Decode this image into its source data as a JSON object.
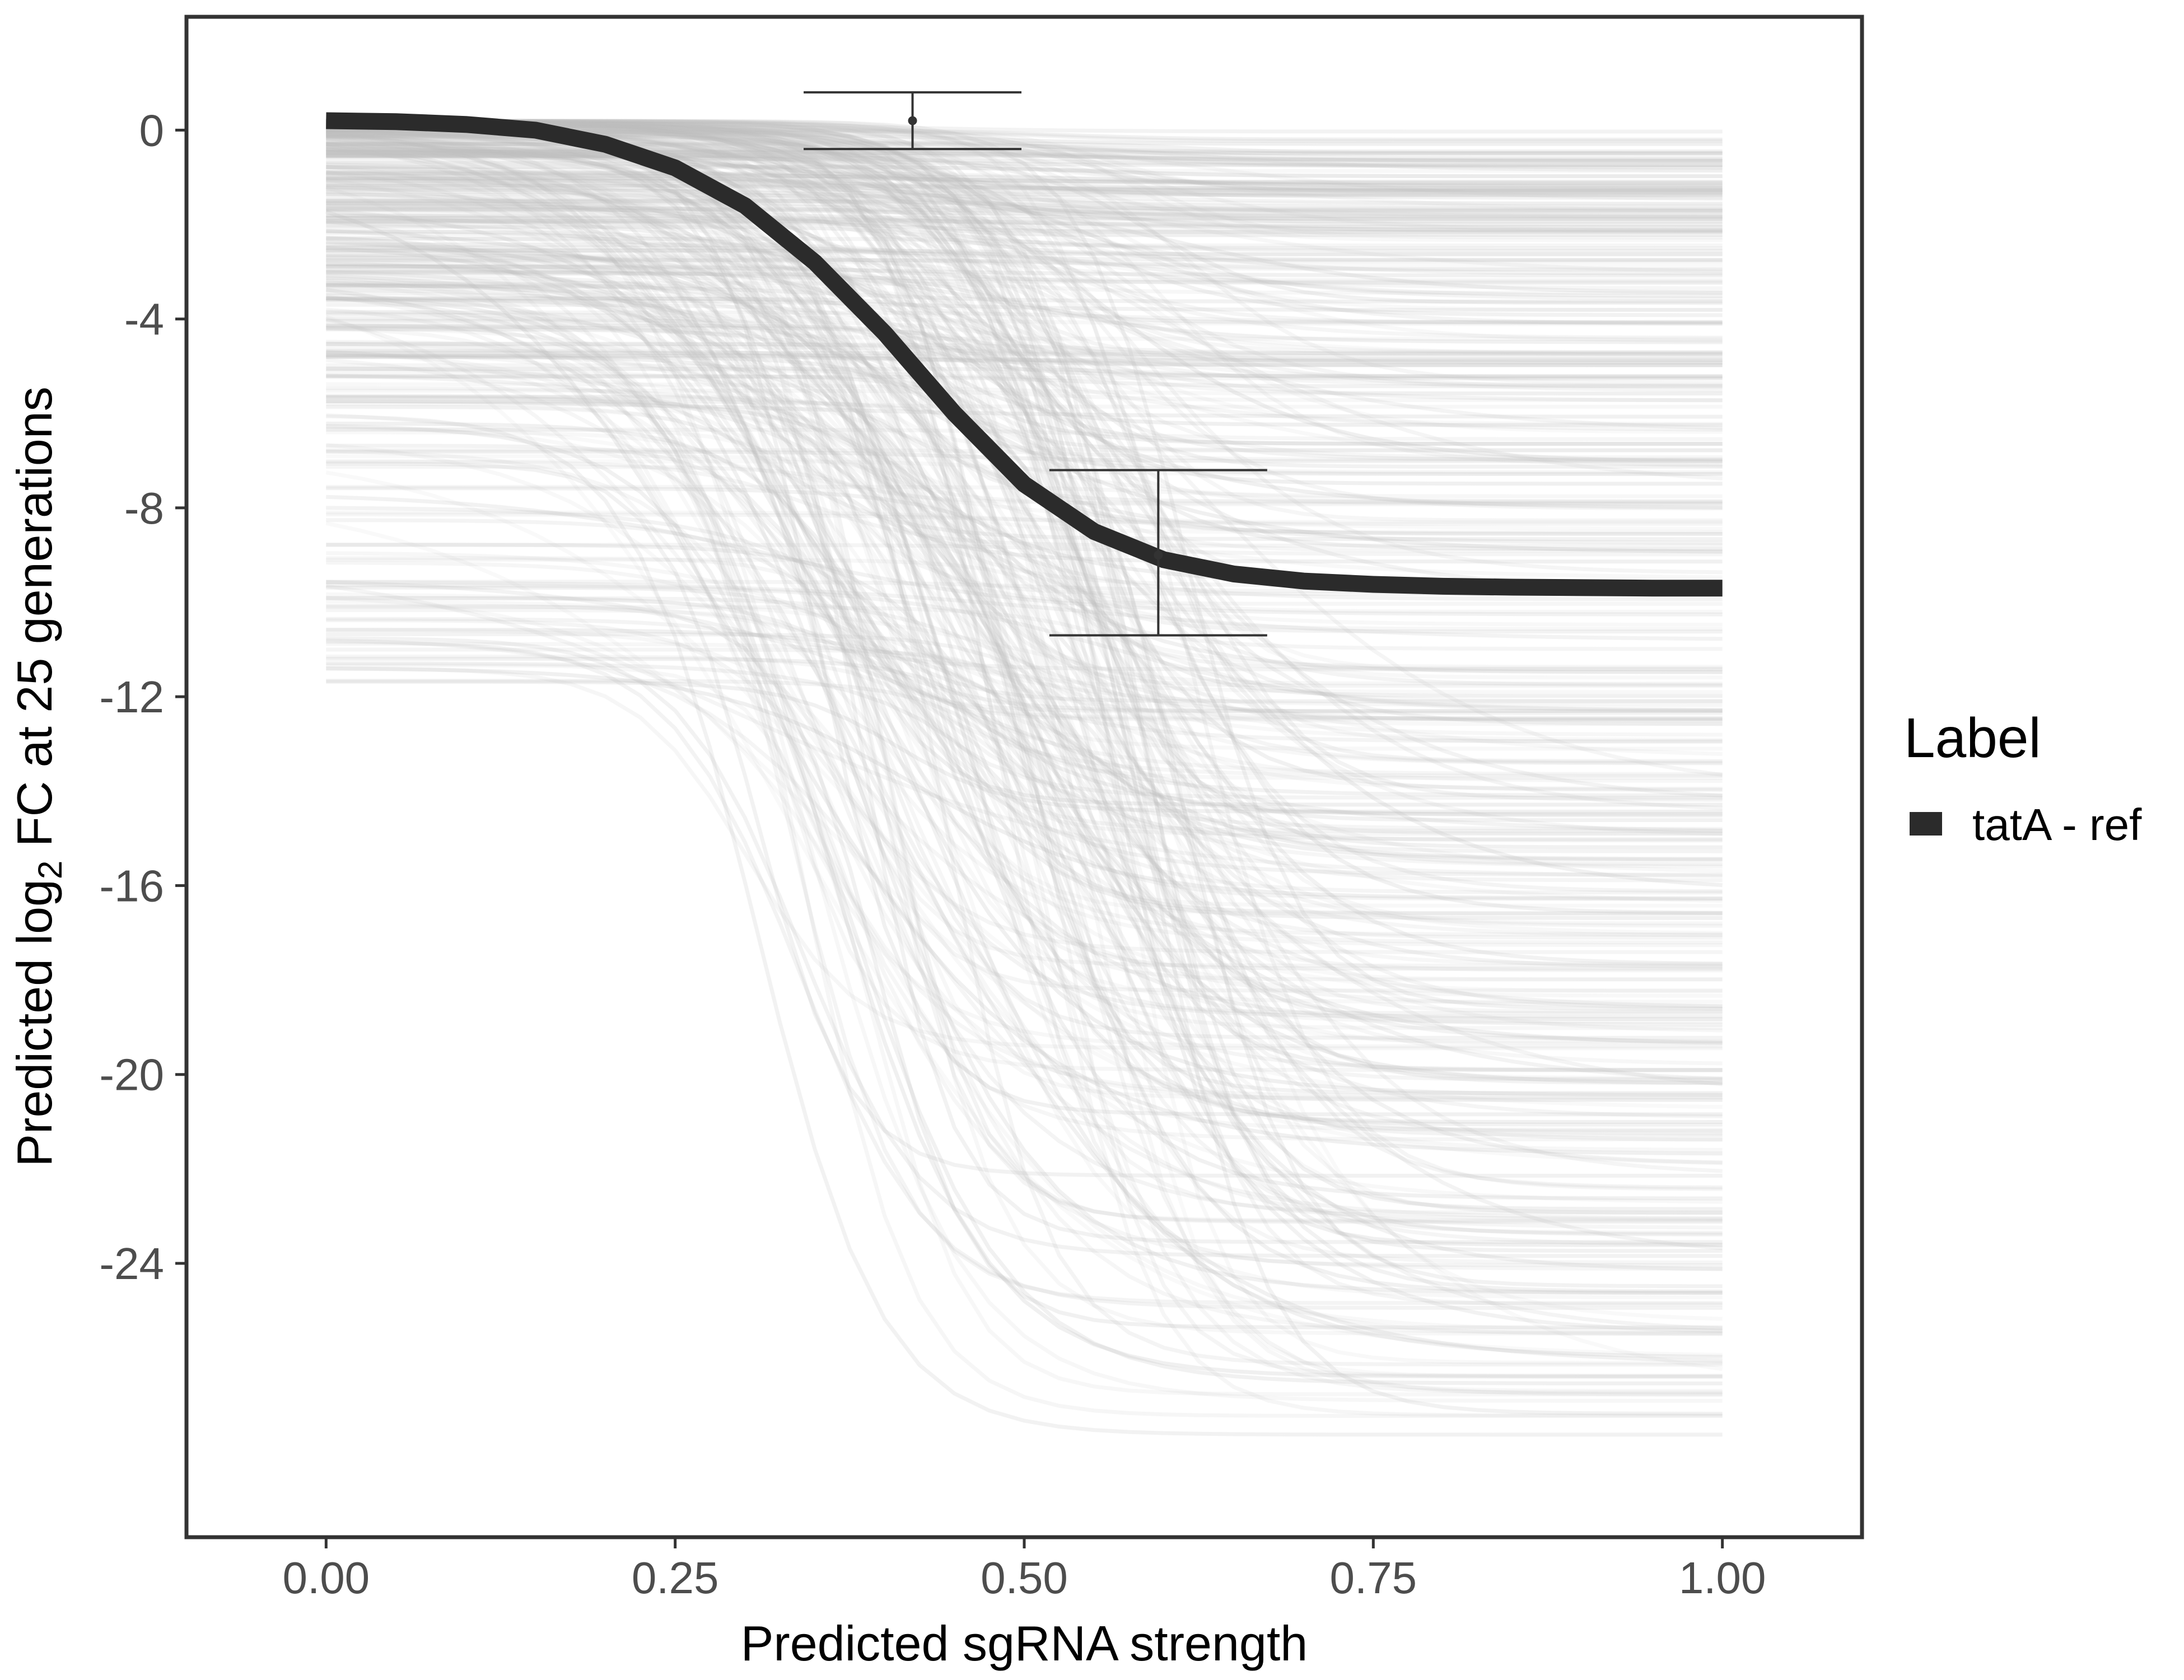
{
  "chart_data": {
    "type": "line",
    "title": "",
    "xlabel": "Predicted sgRNA strength",
    "ylabel_parts": [
      "Predicted  log",
      "2",
      " FC at 25 generations"
    ],
    "xlim": [
      -0.1,
      1.1
    ],
    "ylim": [
      -29.8,
      2.4
    ],
    "x_ticks": [
      0.0,
      0.25,
      0.5,
      0.75,
      1.0
    ],
    "x_tick_labels": [
      "0.00",
      "0.25",
      "0.50",
      "0.75",
      "1.00"
    ],
    "y_ticks": [
      0,
      -4,
      -8,
      -12,
      -16,
      -20,
      -24
    ],
    "y_tick_labels": [
      "0",
      "-4",
      "-8",
      "-12",
      "-16",
      "-20",
      "-24"
    ],
    "grid": false,
    "legend": {
      "title": "Label",
      "position": "right",
      "entries": [
        {
          "label": "tatA - ref",
          "color": "#2b2b2b"
        }
      ]
    },
    "series": [
      {
        "name": "tatA - ref",
        "color": "#2b2b2b",
        "x": [
          0.0,
          0.05,
          0.1,
          0.15,
          0.2,
          0.25,
          0.3,
          0.35,
          0.4,
          0.45,
          0.5,
          0.55,
          0.6,
          0.65,
          0.7,
          0.75,
          0.8,
          0.85,
          0.9,
          0.95,
          1.0
        ],
        "y": [
          0.2,
          0.18,
          0.12,
          0.0,
          -0.3,
          -0.8,
          -1.6,
          -2.8,
          -4.3,
          -6.0,
          -7.5,
          -8.5,
          -9.1,
          -9.4,
          -9.55,
          -9.62,
          -9.66,
          -9.68,
          -9.69,
          -9.7,
          -9.7
        ]
      }
    ],
    "error_bars": [
      {
        "x": 0.42,
        "y": 0.2,
        "ymin": -0.4,
        "ymax": 0.8
      },
      {
        "x": 0.596,
        "y": -9.0,
        "ymin": -10.7,
        "ymax": -7.2
      }
    ],
    "background_curves": {
      "description_count": 420,
      "color": "#bebebe",
      "x_range": [
        0.0,
        1.0
      ]
    }
  }
}
